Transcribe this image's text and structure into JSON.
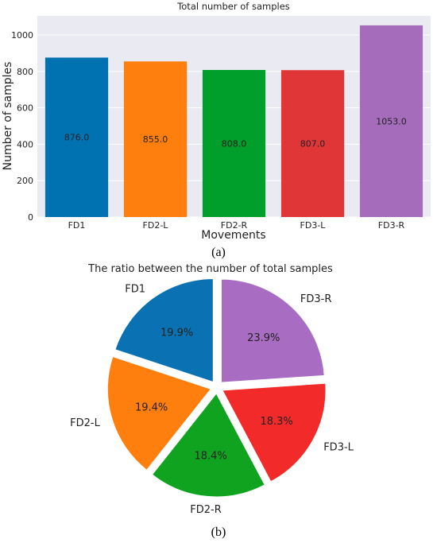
{
  "colors": {
    "plot_background": "#eaeaf2",
    "grid": "#ffffff",
    "text": "#222222",
    "bar_colors": [
      "#0072b2",
      "#ff7f0e",
      "#009e2a",
      "#e13638",
      "#a66cbc"
    ],
    "pie_colors": [
      "#0a72b2",
      "#ff7f0e",
      "#10a320",
      "#f32a2a",
      "#a86cc2"
    ]
  },
  "panel_labels": {
    "a": "(a)",
    "b": "(b)"
  },
  "chart_data": [
    {
      "type": "bar",
      "title": "Total number of samples",
      "xlabel": "Movements",
      "ylabel": "Number of samples",
      "categories": [
        "FD1",
        "FD2-L",
        "FD2-R",
        "FD3-L",
        "FD3-R"
      ],
      "values": [
        876,
        855,
        808,
        807,
        1053
      ],
      "data_labels": [
        "876.0",
        "855.0",
        "808.0",
        "807.0",
        "1053.0"
      ],
      "yticks": [
        0,
        200,
        400,
        600,
        800,
        1000
      ],
      "ytick_labels": [
        "0",
        "200",
        "400",
        "600",
        "800",
        "1000"
      ],
      "ylim": [
        0,
        1105
      ],
      "grid": true
    },
    {
      "type": "pie",
      "title": "The ratio between the number of total samples",
      "labels": [
        "FD1",
        "FD2-L",
        "FD2-R",
        "FD3-L",
        "FD3-R"
      ],
      "values": [
        19.9,
        19.4,
        18.4,
        18.3,
        23.9
      ],
      "value_labels": [
        "19.9%",
        "19.4%",
        "18.4%",
        "18.3%",
        "23.9%"
      ],
      "start_angle_deg": 90,
      "direction": "counterclockwise",
      "exploded": true
    }
  ]
}
